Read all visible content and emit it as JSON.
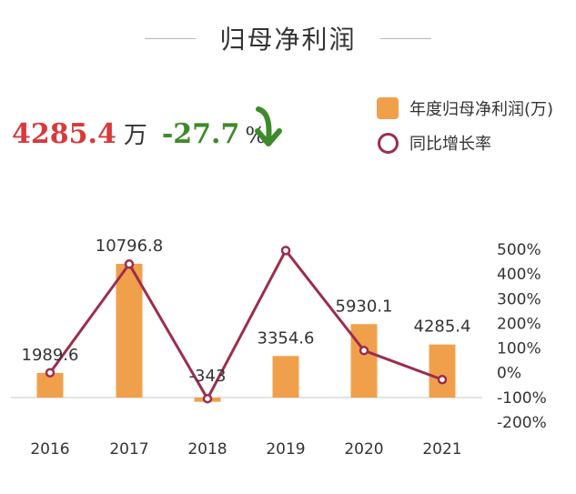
{
  "header": {
    "title": "归母净利润"
  },
  "stats": {
    "value": "4285.4",
    "value_unit": "万",
    "change": "-27.7",
    "change_unit": "%",
    "arrow_icon": "down-arrow-icon"
  },
  "legend": [
    {
      "label": "年度归母净利润(万)",
      "color": "#f0a04b",
      "kind": "bar"
    },
    {
      "label": "同比增长率",
      "color": "#9c2d4c",
      "kind": "line"
    }
  ],
  "colors": {
    "bar": "#f0a04b",
    "line": "#9c2d4c",
    "value_red": "#d8393a",
    "change_green": "#3d8a2a"
  },
  "chart_data": {
    "type": "bar",
    "categories": [
      "2016",
      "2017",
      "2018",
      "2019",
      "2020",
      "2021"
    ],
    "series": [
      {
        "name": "年度归母净利润(万)",
        "type": "bar",
        "values": [
          1989.6,
          10796.8,
          -343,
          3354.6,
          5930.1,
          4285.4
        ],
        "data_labels": [
          "1989.6",
          "10796.8",
          "-343",
          "3354.6",
          "5930.1",
          "4285.4"
        ]
      },
      {
        "name": "同比增长率",
        "type": "line",
        "values": [
          0,
          440,
          -105,
          495,
          90,
          -27.7
        ]
      }
    ],
    "y_left_range": [
      -800,
      12000
    ],
    "y_right_ticks": [
      "500%",
      "400%",
      "300%",
      "200%",
      "100%",
      "0%",
      "-100%",
      "-200%"
    ],
    "y_right_range": [
      -200,
      500
    ],
    "grid": false
  }
}
